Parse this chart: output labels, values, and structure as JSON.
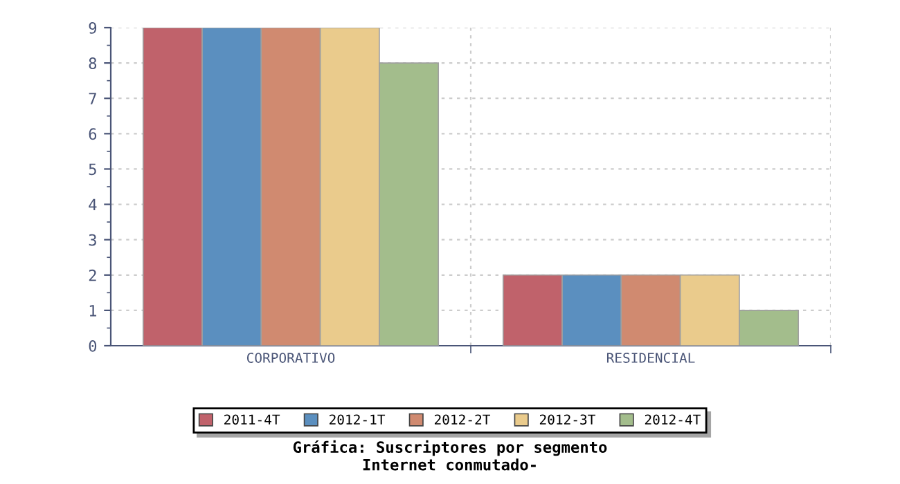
{
  "chart_data": {
    "type": "bar",
    "title": "Gráfica: Suscriptores por segmento",
    "subtitle": "Internet conmutado-",
    "categories": [
      "CORPORATIVO",
      "RESIDENCIAL"
    ],
    "series": [
      {
        "name": "2011-4T",
        "color": "#c0626b",
        "values": [
          9,
          2
        ]
      },
      {
        "name": "2012-1T",
        "color": "#5b8fbf",
        "values": [
          9,
          2
        ]
      },
      {
        "name": "2012-2T",
        "color": "#d08a70",
        "values": [
          9,
          2
        ]
      },
      {
        "name": "2012-3T",
        "color": "#eacb8c",
        "values": [
          9,
          2
        ]
      },
      {
        "name": "2012-4T",
        "color": "#a3bd8c",
        "values": [
          8,
          1
        ]
      }
    ],
    "ylim": [
      0,
      9
    ],
    "yticks": [
      0,
      1,
      2,
      3,
      4,
      5,
      6,
      7,
      8,
      9
    ],
    "grid": true,
    "legend": "bottom"
  }
}
